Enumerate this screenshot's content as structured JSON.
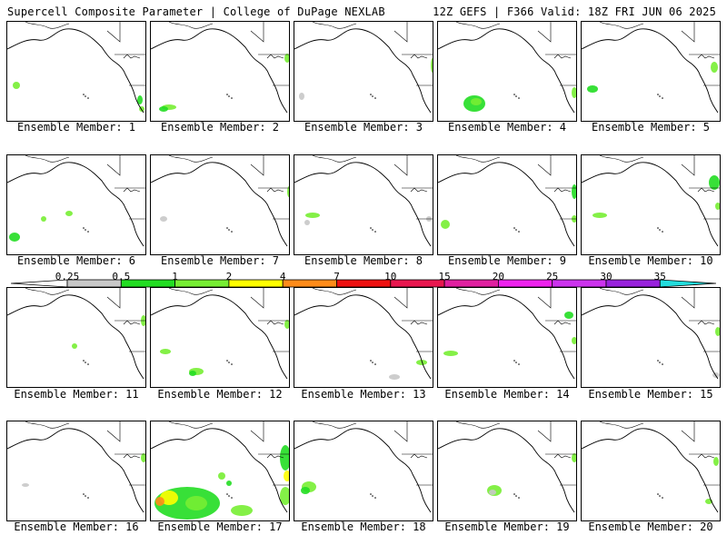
{
  "header": {
    "left": "Supercell Composite Parameter | College of DuPage NEXLAB",
    "right": "12Z GEFS | F366 Valid: 18Z FRI JUN 06 2025"
  },
  "caption_prefix": "Ensemble Member: ",
  "members": [
    {
      "id": 1
    },
    {
      "id": 2
    },
    {
      "id": 3
    },
    {
      "id": 4
    },
    {
      "id": 5
    },
    {
      "id": 6
    },
    {
      "id": 7
    },
    {
      "id": 8
    },
    {
      "id": 9
    },
    {
      "id": 10
    },
    {
      "id": 11
    },
    {
      "id": 12
    },
    {
      "id": 13
    },
    {
      "id": 14
    },
    {
      "id": 15
    },
    {
      "id": 16
    },
    {
      "id": 17
    },
    {
      "id": 18
    },
    {
      "id": 19
    },
    {
      "id": 20
    }
  ],
  "colorbar": {
    "levels": [
      "0.25",
      "0.5",
      "1",
      "2",
      "4",
      "7",
      "10",
      "15",
      "20",
      "25",
      "30",
      "35"
    ],
    "colors": {
      "gray": "#c8c8c8",
      "green_dark": "#22dd22",
      "green_light": "#77ee33",
      "yellow": "#ffff00",
      "orange": "#ff8c1a",
      "red": "#ee1111",
      "crimson": "#e8174f",
      "magenta_dark": "#e020a0",
      "magenta": "#ee22ee",
      "purple_light": "#cc33ee",
      "purple": "#9922dd",
      "violet": "#aa66dd",
      "cyan": "#22dddd"
    }
  }
}
